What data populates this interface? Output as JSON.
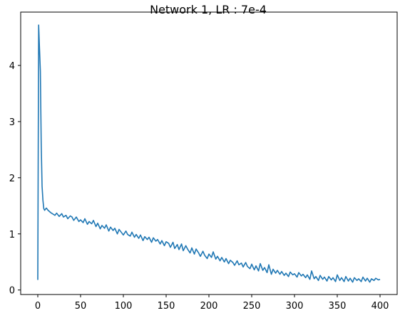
{
  "chart_data": {
    "type": "line",
    "title": "Network 1, LR : 7e-4",
    "xlabel": "",
    "ylabel": "",
    "xlim": [
      -20,
      420
    ],
    "ylim": [
      -0.08,
      4.95
    ],
    "xticks": [
      0,
      50,
      100,
      150,
      200,
      250,
      300,
      350,
      400
    ],
    "yticks": [
      0,
      1,
      2,
      3,
      4
    ],
    "grid": false,
    "series": [
      {
        "color": "#1f77b4",
        "x": [
          0,
          1,
          2,
          3,
          4,
          5,
          6,
          7,
          8,
          10,
          12,
          15,
          18,
          20,
          22,
          25,
          28,
          30,
          33,
          35,
          38,
          40,
          42,
          45,
          48,
          50,
          53,
          55,
          58,
          60,
          63,
          65,
          68,
          70,
          73,
          75,
          78,
          80,
          83,
          85,
          88,
          90,
          93,
          95,
          98,
          100,
          103,
          105,
          108,
          110,
          113,
          115,
          118,
          120,
          123,
          125,
          128,
          130,
          133,
          135,
          138,
          140,
          143,
          145,
          148,
          150,
          153,
          155,
          158,
          160,
          163,
          165,
          168,
          170,
          173,
          175,
          178,
          180,
          183,
          185,
          188,
          190,
          193,
          195,
          198,
          200,
          203,
          205,
          208,
          210,
          213,
          215,
          218,
          220,
          223,
          225,
          228,
          230,
          233,
          235,
          238,
          240,
          243,
          245,
          248,
          250,
          253,
          255,
          258,
          260,
          263,
          265,
          268,
          270,
          273,
          275,
          278,
          280,
          283,
          285,
          288,
          290,
          293,
          295,
          298,
          300,
          303,
          305,
          308,
          310,
          313,
          315,
          318,
          320,
          323,
          325,
          328,
          330,
          333,
          335,
          338,
          340,
          343,
          345,
          348,
          350,
          353,
          355,
          358,
          360,
          363,
          365,
          368,
          370,
          373,
          375,
          378,
          380,
          383,
          385,
          388,
          390,
          393,
          395,
          398,
          400
        ],
        "values": [
          0.18,
          4.72,
          4.3,
          3.9,
          2.6,
          1.85,
          1.6,
          1.45,
          1.42,
          1.46,
          1.42,
          1.38,
          1.35,
          1.33,
          1.37,
          1.31,
          1.36,
          1.3,
          1.33,
          1.27,
          1.32,
          1.3,
          1.24,
          1.3,
          1.22,
          1.25,
          1.2,
          1.27,
          1.17,
          1.22,
          1.18,
          1.24,
          1.13,
          1.19,
          1.09,
          1.15,
          1.1,
          1.16,
          1.05,
          1.12,
          1.06,
          1.1,
          1.0,
          1.08,
          1.02,
          0.98,
          1.05,
          0.99,
          0.96,
          1.03,
          0.94,
          0.99,
          0.92,
          0.98,
          0.88,
          0.95,
          0.9,
          0.94,
          0.85,
          0.93,
          0.87,
          0.9,
          0.82,
          0.88,
          0.79,
          0.86,
          0.83,
          0.76,
          0.85,
          0.74,
          0.81,
          0.72,
          0.82,
          0.7,
          0.79,
          0.73,
          0.66,
          0.75,
          0.64,
          0.73,
          0.66,
          0.6,
          0.69,
          0.62,
          0.56,
          0.64,
          0.58,
          0.68,
          0.55,
          0.6,
          0.52,
          0.58,
          0.5,
          0.56,
          0.47,
          0.53,
          0.49,
          0.44,
          0.52,
          0.45,
          0.48,
          0.41,
          0.49,
          0.42,
          0.38,
          0.46,
          0.36,
          0.43,
          0.34,
          0.47,
          0.35,
          0.4,
          0.31,
          0.45,
          0.28,
          0.37,
          0.3,
          0.35,
          0.28,
          0.33,
          0.26,
          0.3,
          0.24,
          0.32,
          0.27,
          0.29,
          0.23,
          0.31,
          0.25,
          0.28,
          0.22,
          0.27,
          0.19,
          0.34,
          0.2,
          0.24,
          0.17,
          0.26,
          0.19,
          0.23,
          0.16,
          0.24,
          0.18,
          0.22,
          0.15,
          0.27,
          0.17,
          0.22,
          0.15,
          0.24,
          0.16,
          0.21,
          0.14,
          0.22,
          0.17,
          0.2,
          0.15,
          0.23,
          0.16,
          0.21,
          0.14,
          0.2,
          0.17,
          0.21,
          0.18,
          0.19
        ]
      }
    ]
  }
}
